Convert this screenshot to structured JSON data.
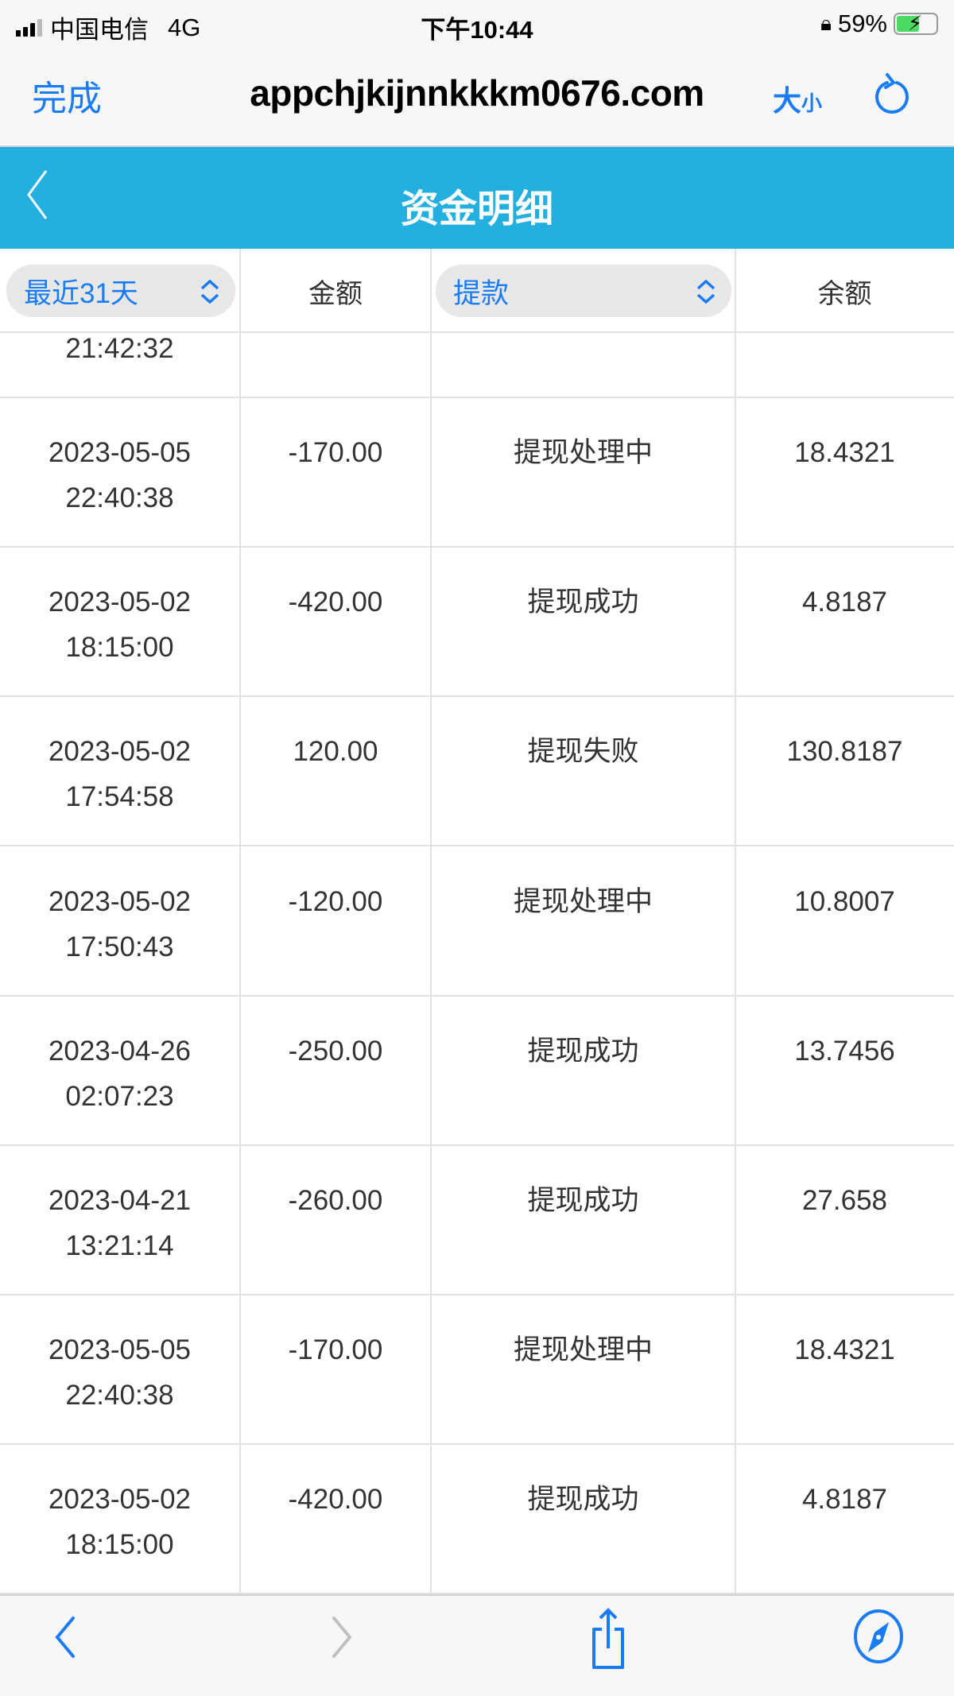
{
  "status_bar": {
    "carrier": "中国电信",
    "network": "4G",
    "time": "下午10:44",
    "battery": "59%",
    "battery_level": 59
  },
  "browser": {
    "done_label": "完成",
    "url": "appchjkijnnkkkm0676.com",
    "size_label_big": "大",
    "size_label_small": "小",
    "icons": [
      "reload-icon"
    ]
  },
  "header": {
    "title": "资金明细",
    "back_icon": "chevron-left-icon",
    "color": "#23b0e0"
  },
  "table": {
    "columns": {
      "date_filter": "最近31天",
      "amount": "金额",
      "type_filter": "提款",
      "balance": "余额"
    },
    "partial_row": {
      "time": "21:42:32"
    },
    "rows": [
      {
        "date": "2023-05-05",
        "time": "22:40:38",
        "amount": "-170.00",
        "status": "提现处理中",
        "balance": "18.4321"
      },
      {
        "date": "2023-05-02",
        "time": "18:15:00",
        "amount": "-420.00",
        "status": "提现成功",
        "balance": "4.8187"
      },
      {
        "date": "2023-05-02",
        "time": "17:54:58",
        "amount": "120.00",
        "status": "提现失败",
        "balance": "130.8187"
      },
      {
        "date": "2023-05-02",
        "time": "17:50:43",
        "amount": "-120.00",
        "status": "提现处理中",
        "balance": "10.8007"
      },
      {
        "date": "2023-04-26",
        "time": "02:07:23",
        "amount": "-250.00",
        "status": "提现成功",
        "balance": "13.7456"
      },
      {
        "date": "2023-04-21",
        "time": "13:21:14",
        "amount": "-260.00",
        "status": "提现成功",
        "balance": "27.658"
      },
      {
        "date": "2023-05-05",
        "time": "22:40:38",
        "amount": "-170.00",
        "status": "提现处理中",
        "balance": "18.4321"
      },
      {
        "date": "2023-05-02",
        "time": "18:15:00",
        "amount": "-420.00",
        "status": "提现成功",
        "balance": "4.8187"
      }
    ]
  },
  "toolbar": {
    "icons": [
      "back-icon",
      "forward-icon",
      "share-icon",
      "compass-icon"
    ]
  },
  "accent": "#1a7cf5"
}
